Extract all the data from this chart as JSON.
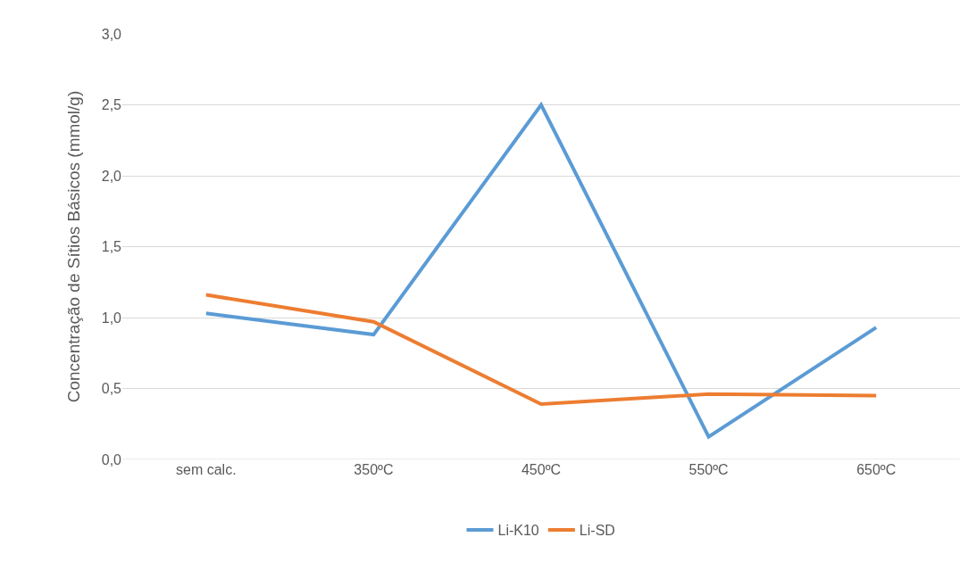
{
  "chart_data": {
    "type": "line",
    "ylabel": "Concentração de Sítios Básicos (mmol/g)",
    "categories": [
      "sem calc.",
      "350ºC",
      "450ºC",
      "550ºC",
      "650ºC"
    ],
    "series": [
      {
        "name": "Li-K10",
        "color": "#5b9bd5",
        "values": [
          1.03,
          0.88,
          2.5,
          0.16,
          0.93
        ]
      },
      {
        "name": "Li-SD",
        "color": "#ed7d31",
        "values": [
          1.16,
          0.97,
          0.39,
          0.46,
          0.45
        ]
      }
    ],
    "ylim": [
      0,
      3
    ],
    "yticks": [
      {
        "value": 0,
        "label": "0,0"
      },
      {
        "value": 0.5,
        "label": "0,5"
      },
      {
        "value": 1,
        "label": "1,0"
      },
      {
        "value": 1.5,
        "label": "1,5"
      },
      {
        "value": 2,
        "label": "2,0"
      },
      {
        "value": 2.5,
        "label": "2,5"
      },
      {
        "value": 3,
        "label": "3,0"
      }
    ],
    "grid": "y",
    "legend": "bottom",
    "marker": "none",
    "line_style": "solid"
  }
}
